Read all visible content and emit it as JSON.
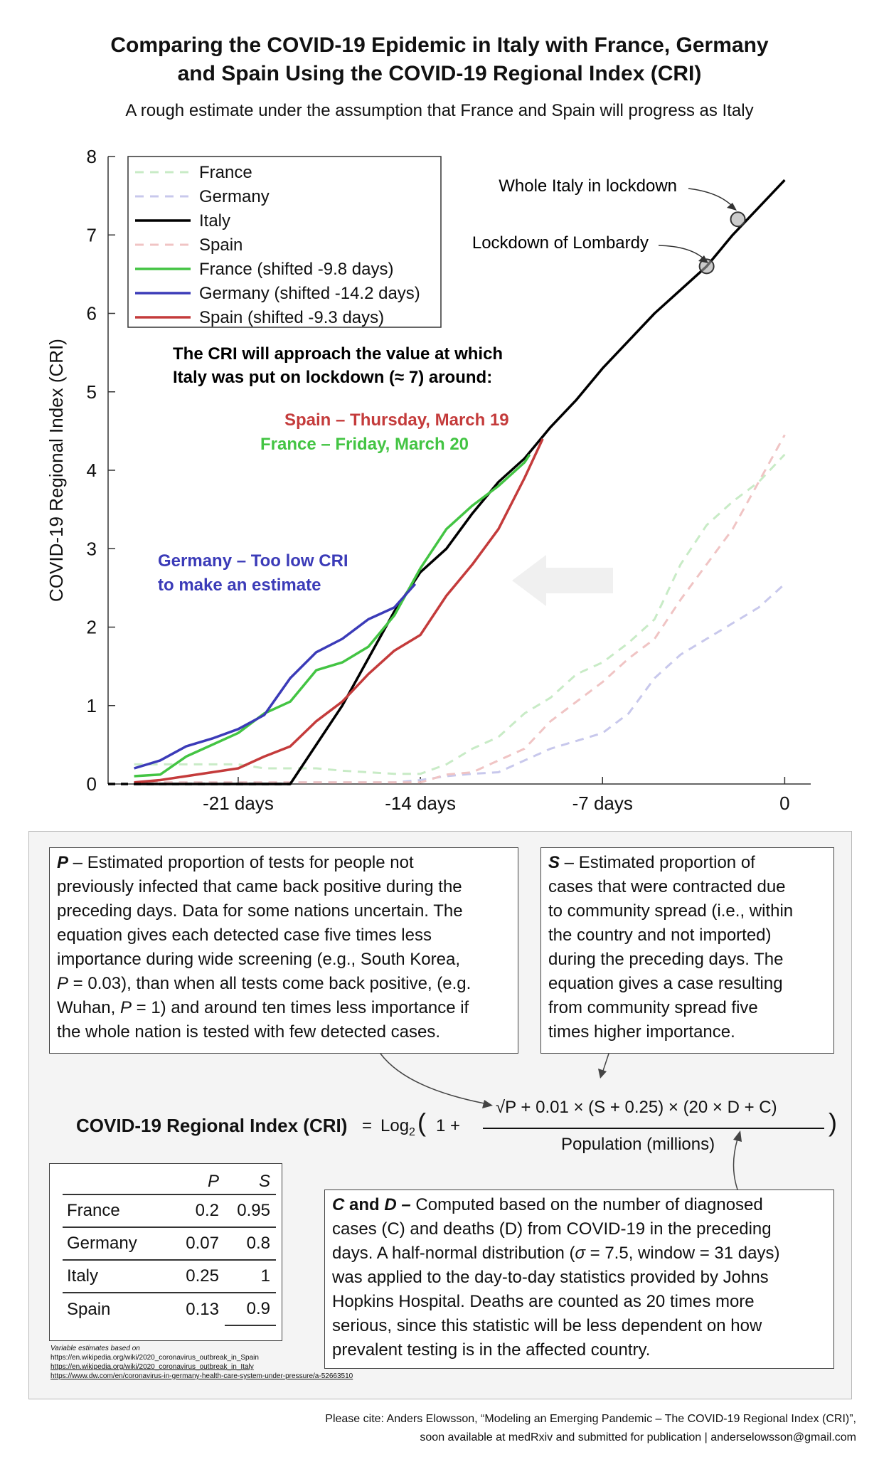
{
  "title_line1": "Comparing the COVID-19 Epidemic in Italy with France, Germany",
  "title_line2": "and Spain Using the COVID-19 Regional Index (CRI)",
  "subtitle": "A rough estimate under the assumption that France and Spain will progress as Italy",
  "chart_data": {
    "type": "line",
    "ylabel": "COVID-19 Regional Index (CRI)",
    "xlim": [
      -26,
      1
    ],
    "ylim": [
      0,
      8
    ],
    "x_ticks": [
      -21,
      -14,
      -7,
      0
    ],
    "x_tick_labels": [
      "-21 days",
      "-14 days",
      "-7 days",
      "0"
    ],
    "y_ticks": [
      0,
      1,
      2,
      3,
      4,
      5,
      6,
      7,
      8
    ],
    "legend_position": "top-left",
    "colors": {
      "france": "#43c443",
      "germany": "#3b3bb8",
      "italy": "#000000",
      "spain": "#c43b3b",
      "france_dashed": "#c8ebc6",
      "germany_dashed": "#c8c8ec",
      "spain_dashed": "#f0c4c4"
    },
    "series": [
      {
        "name": "France",
        "style": "dashed",
        "color_key": "france_dashed",
        "x": [
          -25,
          -24,
          -23,
          -22,
          -21,
          -20,
          -19,
          -18,
          -17,
          -16,
          -15,
          -14,
          -13,
          -12,
          -11,
          -10,
          -9,
          -8,
          -7,
          -6,
          -5,
          -4,
          -3,
          -2,
          -1,
          0
        ],
        "y": [
          0.25,
          0.25,
          0.25,
          0.25,
          0.25,
          0.2,
          0.2,
          0.2,
          0.17,
          0.15,
          0.13,
          0.13,
          0.25,
          0.45,
          0.6,
          0.9,
          1.1,
          1.4,
          1.55,
          1.8,
          2.1,
          2.8,
          3.3,
          3.6,
          3.85,
          4.2
        ]
      },
      {
        "name": "Germany",
        "style": "dashed",
        "color_key": "germany_dashed",
        "x": [
          -25,
          -24,
          -23,
          -22,
          -21,
          -20,
          -19,
          -18,
          -17,
          -16,
          -15,
          -14,
          -13,
          -12,
          -11,
          -10,
          -9,
          -8,
          -7,
          -6,
          -5,
          -4,
          -3,
          -2,
          -1,
          0
        ],
        "y": [
          0.02,
          0.02,
          0.02,
          0.02,
          0.02,
          0.02,
          0.02,
          0.02,
          0.02,
          0.02,
          0.02,
          0.05,
          0.1,
          0.13,
          0.15,
          0.3,
          0.45,
          0.55,
          0.65,
          0.9,
          1.35,
          1.65,
          1.85,
          2.05,
          2.25,
          2.55
        ]
      },
      {
        "name": "Italy",
        "style": "solid",
        "color_key": "italy",
        "x": [
          -25,
          -24,
          -23,
          -22,
          -21,
          -20,
          -19,
          -18,
          -17,
          -16,
          -15,
          -14,
          -13,
          -12,
          -11,
          -10,
          -9,
          -8,
          -7,
          -6,
          -5,
          -4,
          -3,
          -2,
          -1,
          0
        ],
        "y": [
          0,
          0,
          0,
          0,
          0,
          0,
          0,
          0.5,
          1.0,
          1.6,
          2.2,
          2.7,
          3.0,
          3.45,
          3.85,
          4.15,
          4.55,
          4.9,
          5.3,
          5.65,
          6.0,
          6.3,
          6.6,
          7.0,
          7.35,
          7.7
        ]
      },
      {
        "name": "Spain",
        "style": "dashed",
        "color_key": "spain_dashed",
        "x": [
          -25,
          -24,
          -23,
          -22,
          -21,
          -20,
          -19,
          -18,
          -17,
          -16,
          -15,
          -14,
          -13,
          -12,
          -11,
          -10,
          -9,
          -8,
          -7,
          -6,
          -5,
          -4,
          -3,
          -2,
          -1,
          0
        ],
        "y": [
          0.02,
          0.02,
          0.02,
          0.02,
          0.02,
          0.02,
          0.02,
          0.02,
          0.02,
          0.02,
          0.02,
          0.02,
          0.12,
          0.15,
          0.3,
          0.45,
          0.8,
          1.05,
          1.3,
          1.6,
          1.85,
          2.35,
          2.8,
          3.25,
          3.85,
          4.45
        ]
      },
      {
        "name": "France (shifted -9.8 days)",
        "style": "solid",
        "color_key": "france",
        "x": [
          -25,
          -24,
          -23,
          -22,
          -21,
          -20,
          -19,
          -18,
          -17,
          -16,
          -15,
          -14,
          -13,
          -12,
          -11,
          -10,
          -9.8
        ],
        "y": [
          0.1,
          0.12,
          0.35,
          0.5,
          0.65,
          0.9,
          1.05,
          1.45,
          1.55,
          1.75,
          2.15,
          2.75,
          3.25,
          3.55,
          3.8,
          4.1,
          4.2
        ]
      },
      {
        "name": "Germany (shifted -14.2 days)",
        "style": "solid",
        "color_key": "germany",
        "x": [
          -25,
          -24,
          -23,
          -22,
          -21,
          -20,
          -19,
          -18,
          -17,
          -16,
          -15,
          -14.2
        ],
        "y": [
          0.2,
          0.3,
          0.48,
          0.58,
          0.7,
          0.88,
          1.35,
          1.68,
          1.85,
          2.1,
          2.25,
          2.55
        ]
      },
      {
        "name": "Spain (shifted -9.3 days)",
        "style": "solid",
        "color_key": "spain",
        "x": [
          -25,
          -24,
          -23,
          -22,
          -21,
          -20,
          -19,
          -18,
          -17,
          -16,
          -15,
          -14,
          -13,
          -12,
          -11,
          -10,
          -9.3
        ],
        "y": [
          0.02,
          0.05,
          0.1,
          0.15,
          0.2,
          0.35,
          0.48,
          0.8,
          1.05,
          1.4,
          1.7,
          1.9,
          2.4,
          2.8,
          3.25,
          3.9,
          4.4
        ]
      }
    ],
    "markers": [
      {
        "x": -3,
        "y": 6.6
      },
      {
        "x": -1.8,
        "y": 7.2
      }
    ],
    "annotations": {
      "whole_italy": "Whole Italy in lockdown",
      "lombardy": "Lockdown of Lombardy",
      "approach_line1": "The CRI will approach the value at which",
      "approach_line2": "Italy was put on lockdown (≈ 7) around:",
      "spain_date": "Spain – Thursday, March 19",
      "france_date": "France – Friday, March 20",
      "germany_line1": "Germany – Too low CRI",
      "germany_line2": "to make an estimate"
    }
  },
  "boxP": {
    "var": "P",
    "line1": " – Estimated proportion of tests for people not",
    "line2": "previously infected that came back positive during the",
    "line3": "preceding days. Data for some nations uncertain. The",
    "line4": "equation gives each detected case five times less",
    "line5": "importance during wide screening (e.g., South Korea,",
    "line6a": "P",
    "line6b": " = 0.03), than when all tests come back positive, (e.g.",
    "line7a": "Wuhan, ",
    "line7b": "P",
    "line7c": " = 1) and around ten times less importance if",
    "line8": "the whole nation is tested with few detected cases."
  },
  "boxS": {
    "var": "S",
    "line1": " – Estimated proportion of",
    "line2": "cases that were contracted due",
    "line3": "to community spread (i.e., within",
    "line4": "the country and not imported)",
    "line5": "during the preceding days. The",
    "line6": "equation gives a case resulting",
    "line7": "from community spread five",
    "line8": "times higher importance."
  },
  "boxC": {
    "var_c": "C",
    "and": " and ",
    "var_d": "D –",
    "line1": " Computed based on the number of diagnosed",
    "line2": "cases (C) and deaths (D) from COVID-19 in the preceding",
    "line3a": "days. A half-normal distribution (",
    "sigma": "σ",
    "line3b": " = 7.5, window = 31 days)",
    "line4": "was applied to the day-to-day statistics provided by Johns",
    "line5": "Hopkins Hospital. Deaths are counted as 20 times more",
    "line6": "serious, since this statistic will be less dependent on how",
    "line7": "prevalent testing is in the affected country."
  },
  "formula": {
    "label": "COVID-19 Regional Index (CRI)",
    "eq": "=",
    "log": "Log",
    "log_base": "2",
    "open": "(",
    "one": "1 +",
    "numerator": "√P + 0.01 × (S + 0.25) × (20 × D + C)",
    "denominator": "Population (millions)",
    "close": ")"
  },
  "table": {
    "headers": [
      "",
      "P",
      "S"
    ],
    "rows": [
      [
        "France",
        "0.2",
        "0.95"
      ],
      [
        "Germany",
        "0.07",
        "0.8"
      ],
      [
        "Italy",
        "0.25",
        "1"
      ],
      [
        "Spain",
        "0.13",
        "0.9"
      ]
    ]
  },
  "refs": {
    "heading": "Variable estimates based on",
    "url1": "https://en.wikipedia.org/wiki/2020_coronavirus_outbreak_in_Spain",
    "url2": "https://en.wikipedia.org/wiki/2020_coronavirus_outbreak_in_Italy",
    "url3": "https://www.dw.com/en/coronavirus-in-germany-health-care-system-under-pressure/a-52663510"
  },
  "cite": {
    "line1": "Please cite: Anders Elowsson, “Modeling an Emerging Pandemic – The COVID-19 Regional Index (CRI)”,",
    "line2": "soon available at medRxiv and submitted for publication | anderselowsson@gmail.com"
  }
}
